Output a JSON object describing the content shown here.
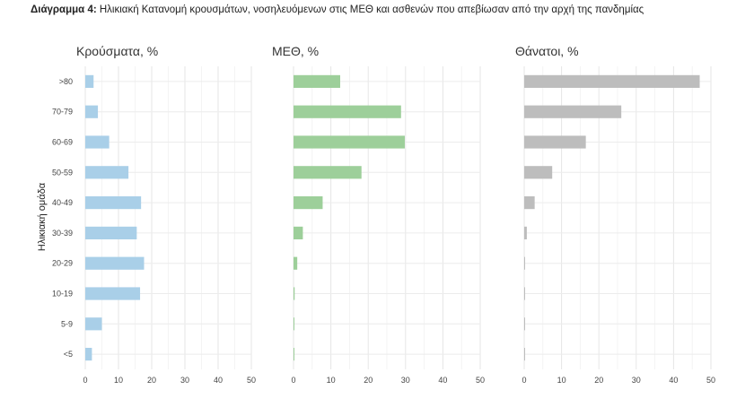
{
  "figure": {
    "label": "Διάγραμμα 4:",
    "title": "Ηλικιακή Κατανομή κρουσμάτων, νοσηλευόμενων στις ΜΕΘ και ασθενών που απεβίωσαν από την αρχή της πανδημίας",
    "ylabel": "Ηλικιακή ομάδα"
  },
  "chart_data": [
    {
      "type": "bar",
      "orientation": "horizontal",
      "title": "Κρούσματα, %",
      "categories": [
        ">80",
        "70-79",
        "60-69",
        "50-59",
        "40-49",
        "30-39",
        "20-29",
        "10-19",
        "5-9",
        "<5"
      ],
      "values": [
        2.5,
        3.8,
        7.2,
        13.0,
        16.8,
        15.5,
        17.7,
        16.5,
        5.0,
        2.0
      ],
      "xlim": [
        0,
        50
      ],
      "xticks": [
        "0",
        "10",
        "20",
        "30",
        "40",
        "50"
      ],
      "color": "#a9cfe8",
      "grid": true
    },
    {
      "type": "bar",
      "orientation": "horizontal",
      "title": "ΜΕΘ, %",
      "categories": [
        ">80",
        "70-79",
        "60-69",
        "50-59",
        "40-49",
        "30-39",
        "20-29",
        "10-19",
        "5-9",
        "<5"
      ],
      "values": [
        12.5,
        28.8,
        29.8,
        18.2,
        7.8,
        2.5,
        1.0,
        0.3,
        0.2,
        0.2
      ],
      "xlim": [
        0,
        50
      ],
      "xticks": [
        "0",
        "10",
        "20",
        "30",
        "40",
        "50"
      ],
      "color": "#9dcf9a",
      "grid": true
    },
    {
      "type": "bar",
      "orientation": "horizontal",
      "title": "Θάνατοι, %",
      "categories": [
        ">80",
        "70-79",
        "60-69",
        "50-59",
        "40-49",
        "30-39",
        "20-29",
        "10-19",
        "5-9",
        "<5"
      ],
      "values": [
        47.0,
        26.0,
        16.5,
        7.5,
        2.8,
        0.7,
        0.2,
        0.2,
        0.0,
        0.1
      ],
      "xlim": [
        0,
        50
      ],
      "xticks": [
        "0",
        "10",
        "20",
        "30",
        "40",
        "50"
      ],
      "color": "#bdbdbd",
      "grid": true
    }
  ]
}
